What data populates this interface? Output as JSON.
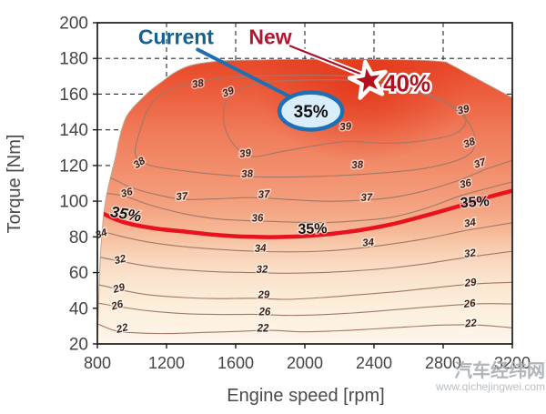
{
  "watermark": {
    "name": "汽车经纬网",
    "url": "www.qichejingwei.com"
  },
  "chart_data": {
    "type": "contour",
    "title": "",
    "xlabel": "Engine speed [rpm]",
    "ylabel": "Torque [Nm]",
    "xlim": [
      800,
      3200
    ],
    "ylim": [
      20,
      200
    ],
    "x_ticks": [
      800,
      1200,
      1600,
      2000,
      2400,
      2800,
      3200
    ],
    "y_ticks": [
      20,
      40,
      60,
      80,
      100,
      120,
      140,
      160,
      180,
      200
    ],
    "grid": "dashed",
    "z_units": "efficiency %",
    "frame_color": "#1b1b1b",
    "grid_color": "#2a2a2a",
    "tick_label_color": "#454545",
    "axis_title_color": "#4a4a4a",
    "contour_line_color": "#a07868",
    "contour_label_color": "#3d1f14",
    "boundary_stroke": "#bfa693",
    "boundary": {
      "smooth": [
        [
          800,
          20
        ],
        [
          810,
          52
        ],
        [
          823,
          78
        ],
        [
          841,
          96
        ],
        [
          863,
          108
        ],
        [
          888,
          118
        ],
        [
          908,
          126
        ],
        [
          922,
          133
        ],
        [
          940,
          140
        ],
        [
          966,
          147
        ],
        [
          1002,
          152
        ],
        [
          1052,
          157
        ],
        [
          1106,
          162
        ],
        [
          1174,
          167
        ],
        [
          1245,
          172
        ],
        [
          1335,
          176
        ],
        [
          1455,
          178
        ],
        [
          1620,
          179
        ],
        [
          2150,
          179.5
        ],
        [
          2650,
          179
        ],
        [
          2815,
          178
        ]
      ],
      "straight": [
        [
          3200,
          158
        ],
        [
          3200,
          20
        ]
      ]
    },
    "fill_gradient": [
      {
        "t": 20,
        "c": "#fdf6ec"
      },
      {
        "t": 30,
        "c": "#fdf2e3"
      },
      {
        "t": 42,
        "c": "#fceeda"
      },
      {
        "t": 55,
        "c": "#fae5cf"
      },
      {
        "t": 66,
        "c": "#f9d8bf"
      },
      {
        "t": 75,
        "c": "#f7c9ab"
      },
      {
        "t": 84,
        "c": "#f6b795"
      },
      {
        "t": 95,
        "c": "#f4a583"
      },
      {
        "t": 108,
        "c": "#f39775"
      },
      {
        "t": 122,
        "c": "#f18a68"
      },
      {
        "t": 136,
        "c": "#f07e5c"
      },
      {
        "t": 150,
        "c": "#ee6c4b"
      },
      {
        "t": 162,
        "c": "#ec5d3c"
      },
      {
        "t": 172,
        "c": "#e95030"
      },
      {
        "t": 179,
        "c": "#e74a2a"
      },
      {
        "t": 200,
        "c": "#e74a2a"
      }
    ],
    "hotspot": {
      "rpm": 2330,
      "nm": 166,
      "rx_rpm": 620,
      "ry_nm": 44,
      "color": "#e23418"
    },
    "contours": [
      {
        "level": 22,
        "points": [
          [
            795,
            31.5
          ],
          [
            900,
            27.5
          ],
          [
            1000,
            26.3
          ],
          [
            1200,
            25.8
          ],
          [
            1400,
            26.4
          ],
          [
            1600,
            27
          ],
          [
            1800,
            27.6
          ],
          [
            2000,
            26.8
          ],
          [
            2200,
            27.4
          ],
          [
            2400,
            28.4
          ],
          [
            2600,
            29.6
          ],
          [
            2800,
            30.6
          ],
          [
            3000,
            30.6
          ],
          [
            3205,
            29
          ]
        ],
        "labels": [
          {
            "rpm": 948,
            "nm": 29,
            "rot": -14
          },
          {
            "rpm": 1758,
            "nm": 28.8,
            "rot": 0
          },
          {
            "rpm": 2962,
            "nm": 31.8,
            "rot": -5
          }
        ]
      },
      {
        "level": 26,
        "points": [
          [
            795,
            43
          ],
          [
            950,
            40.5
          ],
          [
            1100,
            38.5
          ],
          [
            1300,
            37
          ],
          [
            1500,
            36.5
          ],
          [
            1700,
            36.6
          ],
          [
            1900,
            36
          ],
          [
            2100,
            36.4
          ],
          [
            2300,
            37.5
          ],
          [
            2500,
            39
          ],
          [
            2700,
            40.6
          ],
          [
            2900,
            42
          ],
          [
            3050,
            42.6
          ],
          [
            3205,
            42.4
          ]
        ],
        "labels": [
          {
            "rpm": 920,
            "nm": 42,
            "rot": -16
          },
          {
            "rpm": 1768,
            "nm": 38.2,
            "rot": 0
          },
          {
            "rpm": 2955,
            "nm": 42.8,
            "rot": -6
          }
        ]
      },
      {
        "level": 29,
        "points": [
          [
            795,
            53.5
          ],
          [
            950,
            50
          ],
          [
            1100,
            47.5
          ],
          [
            1300,
            46
          ],
          [
            1500,
            45.4
          ],
          [
            1700,
            45.6
          ],
          [
            1900,
            45
          ],
          [
            2100,
            46
          ],
          [
            2300,
            47.5
          ],
          [
            2500,
            49
          ],
          [
            2700,
            51
          ],
          [
            2900,
            53
          ],
          [
            3050,
            54
          ],
          [
            3205,
            54.5
          ]
        ],
        "labels": [
          {
            "rpm": 930,
            "nm": 51.5,
            "rot": -16
          },
          {
            "rpm": 1763,
            "nm": 47.8,
            "rot": -2
          },
          {
            "rpm": 2960,
            "nm": 54.5,
            "rot": -6
          }
        ]
      },
      {
        "level": 32,
        "points": [
          [
            795,
            69
          ],
          [
            950,
            66
          ],
          [
            1100,
            63.5
          ],
          [
            1300,
            61.5
          ],
          [
            1500,
            60.4
          ],
          [
            1700,
            60
          ],
          [
            1900,
            59.6
          ],
          [
            2100,
            60
          ],
          [
            2300,
            61
          ],
          [
            2500,
            62.6
          ],
          [
            2700,
            65
          ],
          [
            2900,
            68
          ],
          [
            3050,
            70
          ],
          [
            3205,
            72
          ]
        ],
        "labels": [
          {
            "rpm": 936,
            "nm": 67.5,
            "rot": -14
          },
          {
            "rpm": 1753,
            "nm": 62,
            "rot": -2
          },
          {
            "rpm": 2958,
            "nm": 71,
            "rot": -8
          }
        ]
      },
      {
        "level": 34,
        "points": [
          [
            795,
            84
          ],
          [
            950,
            80
          ],
          [
            1100,
            77
          ],
          [
            1300,
            74.5
          ],
          [
            1500,
            73
          ],
          [
            1700,
            72
          ],
          [
            1900,
            71.6
          ],
          [
            2100,
            72
          ],
          [
            2300,
            73.5
          ],
          [
            2500,
            76
          ],
          [
            2700,
            79
          ],
          [
            2900,
            83
          ],
          [
            3050,
            85.5
          ],
          [
            3205,
            88
          ]
        ],
        "labels": [
          {
            "rpm": 828,
            "nm": 82,
            "rot": -18
          },
          {
            "rpm": 1744,
            "nm": 73.8,
            "rot": -3
          },
          {
            "rpm": 2368,
            "nm": 77,
            "rot": -5
          },
          {
            "rpm": 2958,
            "nm": 88,
            "rot": -10
          }
        ]
      },
      {
        "level": 36,
        "points": [
          [
            795,
            105
          ],
          [
            950,
            103
          ],
          [
            1100,
            98
          ],
          [
            1300,
            93
          ],
          [
            1500,
            90
          ],
          [
            1700,
            89
          ],
          [
            1900,
            88.4
          ],
          [
            2100,
            88
          ],
          [
            2300,
            89
          ],
          [
            2500,
            91
          ],
          [
            2700,
            96
          ],
          [
            2900,
            103
          ],
          [
            3050,
            107
          ],
          [
            3205,
            111
          ]
        ],
        "labels": [
          {
            "rpm": 975,
            "nm": 105,
            "rot": -16
          },
          {
            "rpm": 1727,
            "nm": 90.8,
            "rot": -3
          },
          {
            "rpm": 2933,
            "nm": 110,
            "rot": -13
          }
        ]
      },
      {
        "level": 37,
        "points": [
          [
            795,
            116
          ],
          [
            900,
            112
          ],
          [
            1000,
            107.5
          ],
          [
            1150,
            103.5
          ],
          [
            1300,
            101
          ],
          [
            1500,
            101.4
          ],
          [
            1700,
            102
          ],
          [
            1900,
            101
          ],
          [
            2100,
            100
          ],
          [
            2300,
            100.4
          ],
          [
            2500,
            102
          ],
          [
            2700,
            106
          ],
          [
            2900,
            112
          ],
          [
            3050,
            118
          ],
          [
            3205,
            123
          ]
        ],
        "labels": [
          {
            "rpm": 1290,
            "nm": 102.8,
            "rot": -5
          },
          {
            "rpm": 1764,
            "nm": 104,
            "rot": -3
          },
          {
            "rpm": 2358,
            "nm": 102.3,
            "rot": -2
          },
          {
            "rpm": 3018,
            "nm": 121.5,
            "rot": -18
          }
        ]
      },
      {
        "level": 38,
        "closed": true,
        "points": [
          [
            1020,
            126
          ],
          [
            1055,
            142
          ],
          [
            1115,
            155
          ],
          [
            1230,
            163
          ],
          [
            1380,
            167
          ],
          [
            1600,
            169.5
          ],
          [
            1900,
            170.5
          ],
          [
            2250,
            170
          ],
          [
            2550,
            165
          ],
          [
            2780,
            157
          ],
          [
            2930,
            146
          ],
          [
            2985,
            134
          ],
          [
            2930,
            125
          ],
          [
            2700,
            118.5
          ],
          [
            2400,
            115.5
          ],
          [
            2100,
            114
          ],
          [
            1800,
            113.5
          ],
          [
            1550,
            114.5
          ],
          [
            1300,
            117
          ],
          [
            1110,
            120
          ]
        ],
        "labels": [
          {
            "rpm": 1053,
            "nm": 122,
            "rot": -35
          },
          {
            "rpm": 1384,
            "nm": 166,
            "rot": -10
          },
          {
            "rpm": 1668,
            "nm": 115.5,
            "rot": -4
          },
          {
            "rpm": 2305,
            "nm": 120.5,
            "rot": -3
          },
          {
            "rpm": 2958,
            "nm": 133,
            "rot": -22
          }
        ]
      },
      {
        "level": 39,
        "closed": true,
        "points": [
          [
            1530,
            151
          ],
          [
            1570,
            159
          ],
          [
            1670,
            164.5
          ],
          [
            1820,
            167
          ],
          [
            2050,
            168
          ],
          [
            2300,
            167.5
          ],
          [
            2550,
            163.5
          ],
          [
            2770,
            157
          ],
          [
            2905,
            150
          ],
          [
            2930,
            144
          ],
          [
            2860,
            137.5
          ],
          [
            2650,
            133.5
          ],
          [
            2450,
            132.5
          ],
          [
            2250,
            133.5
          ],
          [
            2050,
            131
          ],
          [
            1850,
            127.5
          ],
          [
            1705,
            125
          ],
          [
            1615,
            129
          ],
          [
            1545,
            139
          ]
        ],
        "labels": [
          {
            "rpm": 1563,
            "nm": 161.5,
            "rot": -22
          },
          {
            "rpm": 1658,
            "nm": 127,
            "rot": -8
          },
          {
            "rpm": 2237,
            "nm": 142,
            "rot": -5
          },
          {
            "rpm": 2921,
            "nm": 151.5,
            "rot": -14
          }
        ]
      }
    ],
    "highlight_contour": {
      "level": 35,
      "color": "#e8111e",
      "width": 4.5,
      "points": [
        [
          795,
          95
        ],
        [
          900,
          90
        ],
        [
          1000,
          87
        ],
        [
          1150,
          84.5
        ],
        [
          1300,
          83
        ],
        [
          1500,
          81
        ],
        [
          1700,
          80
        ],
        [
          1900,
          80
        ],
        [
          2100,
          81.2
        ],
        [
          2300,
          83.5
        ],
        [
          2500,
          87
        ],
        [
          2700,
          92
        ],
        [
          2900,
          97.5
        ],
        [
          3050,
          102
        ],
        [
          3205,
          106
        ]
      ],
      "labels": [
        {
          "text": "35%",
          "rpm": 960,
          "nm": 93,
          "rot": 10,
          "italic": true,
          "size": 17
        },
        {
          "text": "35%",
          "rpm": 2045,
          "nm": 85,
          "rot": -2,
          "italic": false,
          "size": 16
        },
        {
          "text": "35%",
          "rpm": 2985,
          "nm": 100,
          "rot": -4,
          "italic": false,
          "size": 16
        }
      ],
      "label_color": "#131313"
    },
    "annotations": {
      "current": {
        "label": "Current",
        "color": "#15618f",
        "label_pos": {
          "rpm": 1255,
          "nm": 192
        },
        "leader": [
          [
            1380,
            185
          ],
          [
            1925,
            158
          ]
        ],
        "leader_width": 4,
        "ellipse": {
          "rpm": 2035,
          "nm": 150.5,
          "rx_rpm": 182,
          "ry_nm": 10.4,
          "stroke": "#1f6fb5",
          "fill": "#d8eefa",
          "stroke_width": 4.5
        },
        "value": "35%",
        "value_color": "#111111"
      },
      "new": {
        "label": "New",
        "color": "#b11730",
        "label_pos": {
          "rpm": 1800,
          "nm": 192
        },
        "leader": [
          [
            1915,
            187
          ],
          [
            2318,
            171.5
          ]
        ],
        "leader_color": "#a4152a",
        "star": {
          "rpm": 2368,
          "nm": 167.5,
          "outer_r": 21,
          "inner_r": 8.2,
          "tilt": -10,
          "fill": "#b2101c",
          "stroke": "#ffffff"
        },
        "value": "40%",
        "value_pos": {
          "rpm": 2590,
          "nm": 166
        },
        "value_color": "#b2101c"
      }
    }
  }
}
